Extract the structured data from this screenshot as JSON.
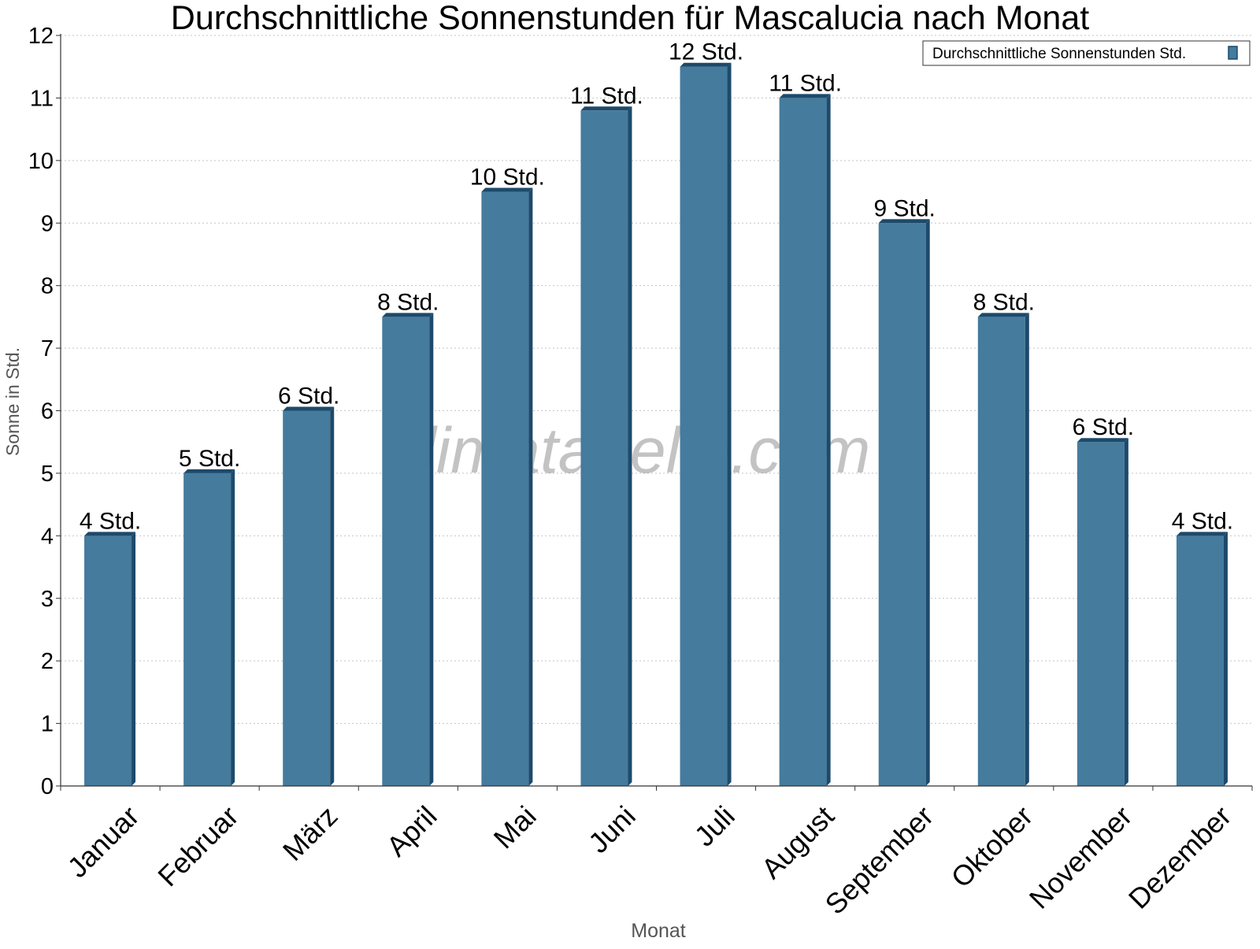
{
  "chart_data": {
    "type": "bar",
    "title": "Durchschnittliche Sonnenstunden für Mascalucia nach Monat",
    "xlabel": "Monat",
    "ylabel": "Sonne in Std.",
    "ylim": [
      0,
      12
    ],
    "yticks": [
      "0",
      "1",
      "2",
      "3",
      "4",
      "5",
      "6",
      "7",
      "8",
      "9",
      "10",
      "11",
      "12"
    ],
    "grid": true,
    "legend_position": "top-right",
    "categories": [
      "Januar",
      "Februar",
      "März",
      "April",
      "Mai",
      "Juni",
      "Juli",
      "August",
      "September",
      "Oktober",
      "November",
      "Dezember"
    ],
    "series": [
      {
        "name": "Durchschnittliche Sonnenstunden Std.",
        "values": [
          4,
          5,
          6,
          7.5,
          9.5,
          10.8,
          11.5,
          11,
          9,
          7.5,
          5.5,
          4
        ],
        "labels": [
          "4 Std.",
          "5 Std.",
          "6 Std.",
          "8 Std.",
          "10 Std.",
          "11 Std.",
          "12 Std.",
          "11 Std.",
          "9 Std.",
          "8 Std.",
          "6 Std.",
          "4 Std."
        ],
        "color": "#457b9d",
        "edge_color": "#1d4a6b"
      }
    ],
    "watermark": "klimatabelle.com"
  }
}
